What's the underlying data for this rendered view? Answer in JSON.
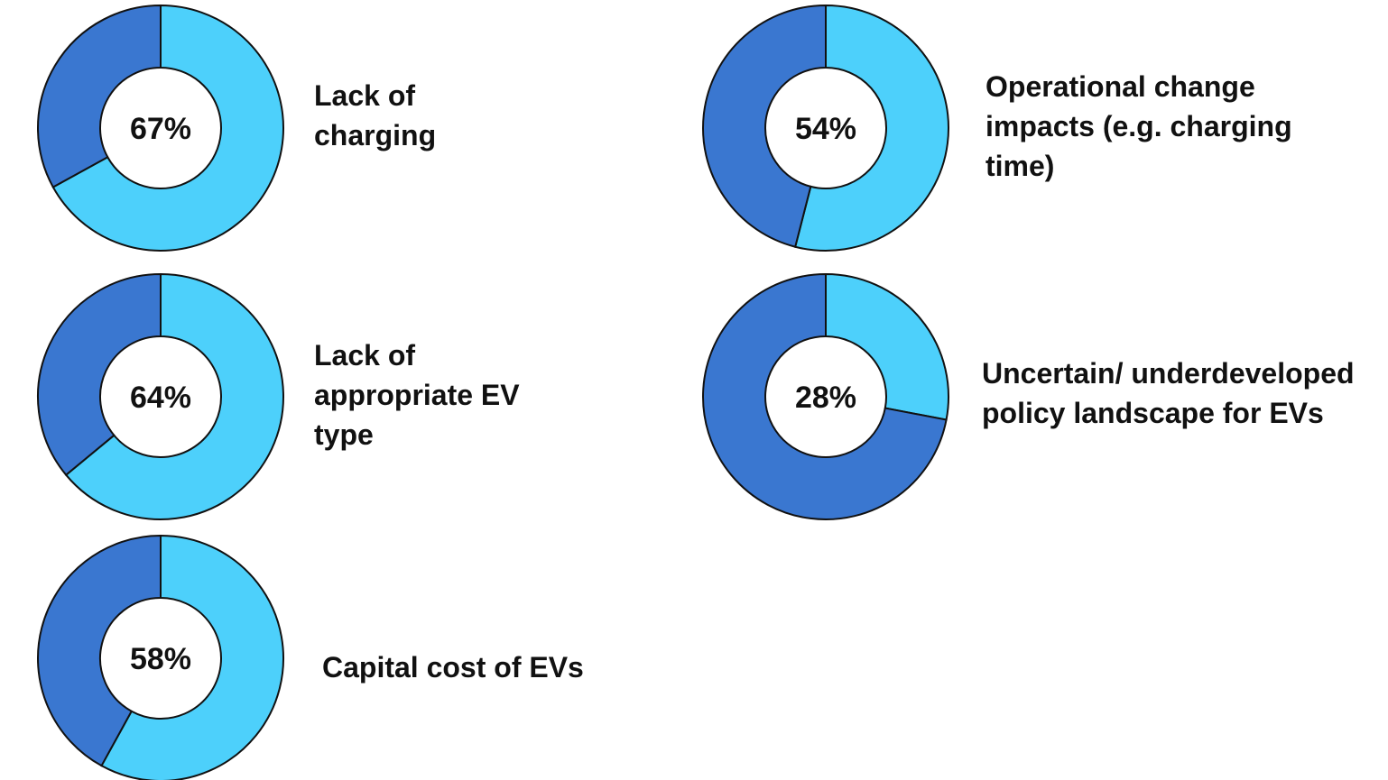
{
  "chart_data": [
    {
      "type": "pie",
      "title": "Lack of charging",
      "values": [
        67,
        33
      ],
      "value_labels": [
        "67%",
        null
      ],
      "colors": [
        "#4dd0fb",
        "#3a77d0"
      ]
    },
    {
      "type": "pie",
      "title": "Lack of appropriate EV type",
      "values": [
        64,
        36
      ],
      "value_labels": [
        "64%",
        null
      ],
      "colors": [
        "#4dd0fb",
        "#3a77d0"
      ]
    },
    {
      "type": "pie",
      "title": "Capital cost of EVs",
      "values": [
        58,
        42
      ],
      "value_labels": [
        "58%",
        null
      ],
      "colors": [
        "#4dd0fb",
        "#3a77d0"
      ]
    },
    {
      "type": "pie",
      "title": "Operational change impacts (e.g. charging time)",
      "values": [
        54,
        46
      ],
      "value_labels": [
        "54%",
        null
      ],
      "colors": [
        "#4dd0fb",
        "#3a77d0"
      ]
    },
    {
      "type": "pie",
      "title": "Uncertain/ underdeveloped policy landscape for EVs",
      "values": [
        28,
        72
      ],
      "value_labels": [
        "28%",
        null
      ],
      "colors": [
        "#4dd0fb",
        "#3a77d0"
      ]
    }
  ]
}
